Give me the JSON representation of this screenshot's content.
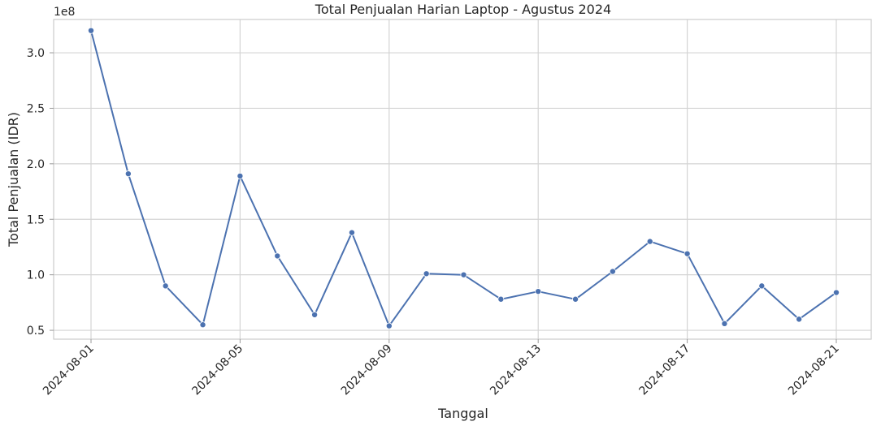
{
  "chart_data": {
    "type": "line",
    "title": "Total Penjualan Harian Laptop - Agustus 2024",
    "xlabel": "Tanggal",
    "ylabel": "Total Penjualan (IDR)",
    "y_offset_label": "1e8",
    "y_unit_scale": 100000000,
    "ylim": [
      0.42,
      3.3
    ],
    "xlim": [
      "2023-12-31",
      "2024-08-22"
    ],
    "xticks": [
      "2024-08-01",
      "2024-08-05",
      "2024-08-09",
      "2024-08-13",
      "2024-08-17",
      "2024-08-21"
    ],
    "yticks": [
      0.5,
      1.0,
      1.5,
      2.0,
      2.5,
      3.0
    ],
    "ytick_labels": [
      "0.5",
      "1.0",
      "1.5",
      "2.0",
      "2.5",
      "3.0"
    ],
    "grid": true,
    "legend": "none",
    "color": "#4c72b0",
    "x": [
      "2024-08-01",
      "2024-08-02",
      "2024-08-03",
      "2024-08-04",
      "2024-08-05",
      "2024-08-06",
      "2024-08-07",
      "2024-08-08",
      "2024-08-09",
      "2024-08-10",
      "2024-08-11",
      "2024-08-12",
      "2024-08-13",
      "2024-08-14",
      "2024-08-15",
      "2024-08-16",
      "2024-08-17",
      "2024-08-18",
      "2024-08-19",
      "2024-08-20",
      "2024-08-21"
    ],
    "y": [
      3.2,
      1.91,
      0.9,
      0.55,
      1.89,
      1.17,
      0.64,
      1.38,
      0.54,
      1.01,
      1.0,
      0.78,
      0.85,
      0.78,
      1.03,
      1.3,
      1.19,
      0.56,
      0.9,
      0.6,
      0.84
    ]
  }
}
